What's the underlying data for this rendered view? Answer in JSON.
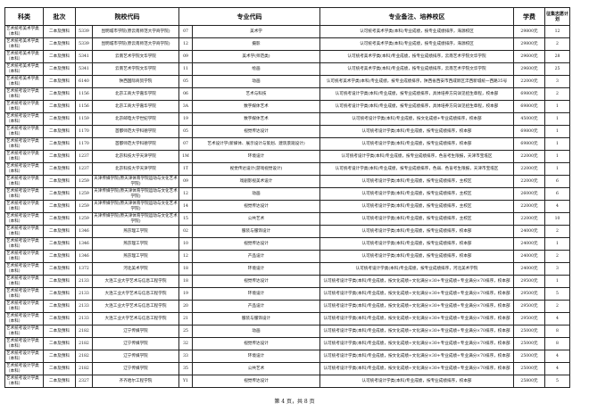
{
  "headers": {
    "category": "科类",
    "batch": "批次",
    "school_code": "院校代码",
    "major_code": "专业代码",
    "notes": "专业备注、培养校区",
    "fee": "学费",
    "plan": "征集志愿计划"
  },
  "rows": [
    [
      "艺术统考美术学类（本科）",
      "二本及预科",
      "5339",
      "昆明城市学院(原云南师范大学商学院)",
      "07",
      "美术学",
      "认可统考美术学类(本科)专业成绩，按专业成绩排序，海源校区",
      "29800元",
      "12"
    ],
    [
      "艺术统考美术学类（本科）",
      "二本及预科",
      "5339",
      "昆明城市学院(原云南师范大学商学院)",
      "12",
      "摄影",
      "认可统考美术学类(本科)专业成绩，按专业成绩排序，海源校区",
      "29800元",
      "2"
    ],
    [
      "艺术统考美术学类（本科）",
      "二本及预科",
      "5341",
      "云南艺术学院文华学院",
      "09",
      "美术学(师范类)",
      "认可统考美术学类(本科)专业成绩，按专业成绩排序，云南艺术学院文华学院",
      "29600元",
      "28"
    ],
    [
      "艺术统考美术学类（本科）",
      "二本及预科",
      "5341",
      "云南艺术学院文华学院",
      "11",
      "绘画",
      "认可统考美术学类(本科)专业成绩，按专业成绩排序，云南艺术学院文华学院",
      "29600元",
      "25"
    ],
    [
      "艺术统考美术学类（本科）",
      "二本及预科",
      "6140",
      "陕西国际商贸学院",
      "05",
      "动画",
      "认可统考美术学类(本科)专业成绩，按专业成绩排序，陕西省西安市西咸新区沣西新城统一西路35号",
      "22000元",
      "3"
    ],
    [
      "艺术统考设计学类（本科）",
      "二本及预科",
      "1156",
      "北京工商大学嘉华学院",
      "06",
      "艺术与科技",
      "认可统考设计学类(本科)专业成绩，按专业成绩排序，具体培养方向详见招生章程，校本部",
      "69800元",
      "2"
    ],
    [
      "艺术统考设计学类（本科）",
      "二本及预科",
      "1156",
      "北京工商大学嘉华学院",
      "3A",
      "数字媒体艺术",
      "认可统考设计学类(本科)专业成绩，按专业成绩排序，具体培养方向详见招生章程，校本部",
      "69800元",
      "1"
    ],
    [
      "艺术统考设计学类（本科）",
      "二本及预科",
      "1159",
      "北京邮电大学世纪学院",
      "19",
      "数字媒体艺术",
      "认可统考设计学类(本科)专业成绩，按文化成绩+专业成绩排序，校本部",
      "45000元",
      "1"
    ],
    [
      "艺术统考设计学类（本科）",
      "二本及预科",
      "1170",
      "首都师范大学科德学院",
      "05",
      "视觉传达设计",
      "认可统考设计学类(本科)专业成绩，按专业成绩排序，校本部",
      "69800元",
      "1"
    ],
    [
      "艺术统考设计学类（本科）",
      "二本及预科",
      "1170",
      "首都师范大学科德学院",
      "07",
      "艺术设计学(新媒体、展示设计与策划、建筑景观设计)",
      "认可统考设计学类(本科)专业成绩，按专业成绩排序，校本部",
      "69800元",
      "1"
    ],
    [
      "艺术统考设计学类（本科）",
      "二本及预科",
      "1237",
      "北京科技大学天津学院",
      "1M",
      "环境设计",
      "认可统考设计学类(本科)专业成绩，按专业成绩排序，色盲考生限报，天津市宝坻区",
      "22000元",
      "1"
    ],
    [
      "艺术统考设计学类（本科）",
      "二本及预科",
      "1237",
      "北京科技大学天津学院",
      "1T",
      "视觉传达设计(游戏视觉设计)",
      "认可统考设计学类(本科)专业成绩，按专业成绩排序，色弱、色盲考生限报，天津市宝坻区",
      "22000元",
      "1"
    ],
    [
      "艺术统考设计学类（本科）",
      "二本及预科",
      "1259",
      "天津传媒学院(原天津体育学院运动与文化艺术学院)",
      "09",
      "戏剧影视美术设计",
      "认可统考设计学类(本科)专业成绩，按专业成绩排序，主校区",
      "22000元",
      "6"
    ],
    [
      "艺术统考设计学类（本科）",
      "二本及预科",
      "1259",
      "天津传媒学院(原天津体育学院运动与文化艺术学院)",
      "12",
      "动画",
      "认可统考设计学类(本科)专业成绩，按专业成绩排序，主校区",
      "26000元",
      "6"
    ],
    [
      "艺术统考设计学类（本科）",
      "二本及预科",
      "1259",
      "天津传媒学院(原天津体育学院运动与文化艺术学院)",
      "14",
      "视觉传达设计",
      "认可统考设计学类(本科)专业成绩，按专业成绩排序，主校区",
      "22000元",
      "4"
    ],
    [
      "艺术统考设计学类（本科）",
      "二本及预科",
      "1259",
      "天津传媒学院(原天津体育学院运动与文化艺术学院)",
      "15",
      "公共艺术",
      "认可统考设计学类(本科)专业成绩，按专业成绩排序，主校区",
      "22000元",
      "10"
    ],
    [
      "艺术统考设计学类（本科）",
      "二本及预科",
      "1346",
      "燕京理工学院",
      "02",
      "服装与服饰设计",
      "认可统考设计学类(本科)专业成绩，按专业成绩排序，校本部",
      "24000元",
      "2"
    ],
    [
      "艺术统考设计学类（本科）",
      "二本及预科",
      "1346",
      "燕京理工学院",
      "10",
      "视觉传达设计",
      "认可统考设计学类(本科)专业成绩，按专业成绩排序，校本部",
      "24000元",
      "1"
    ],
    [
      "艺术统考设计学类（本科）",
      "二本及预科",
      "1346",
      "燕京理工学院",
      "12",
      "产品设计",
      "认可统考设计学类(本科)专业成绩，按专业成绩排序，校本部",
      "24000元",
      "2"
    ],
    [
      "艺术统考设计学类（本科）",
      "二本及预科",
      "1372",
      "河北美术学院",
      "18",
      "环境设计",
      "认可统考设计学类(本科)专业成绩，按专业成绩排序，河北美术学院",
      "24000元",
      "3"
    ],
    [
      "艺术统考设计学类（本科）",
      "二本及预科",
      "2133",
      "大连工业大学艺术与信息工程学院",
      "18",
      "视觉传达设计",
      "认可统考设计学类(本科)专业成绩，按文化成绩÷文化满分×30+专业成绩÷专业满分×70排序，校本部",
      "29500元",
      "1"
    ],
    [
      "艺术统考设计学类（本科）",
      "二本及预科",
      "2133",
      "大连工业大学艺术与信息工程学院",
      "19",
      "环境设计",
      "认可统考设计学类(本科)专业成绩，按文化成绩÷文化满分×30+专业成绩÷专业满分×70排序，校本部",
      "29500元",
      "5"
    ],
    [
      "艺术统考设计学类（本科）",
      "二本及预科",
      "2133",
      "大连工业大学艺术与信息工程学院",
      "20",
      "产品设计",
      "认可统考设计学类(本科)专业成绩，按文化成绩÷文化满分×30+专业成绩÷专业满分×70排序，校本部",
      "29500元",
      "2"
    ],
    [
      "艺术统考设计学类（本科）",
      "二本及预科",
      "2133",
      "大连工业大学艺术与信息工程学院",
      "21",
      "服装与服饰设计",
      "认可统考设计学类(本科)专业成绩，按文化成绩÷文化满分×30+专业成绩÷专业满分×70排序，校本部",
      "29500元",
      "4"
    ],
    [
      "艺术统考设计学类（本科）",
      "二本及预科",
      "2182",
      "辽宁传媒学院",
      "25",
      "动画",
      "认可统考设计学类(本科)专业成绩，按文化成绩÷文化满分×30+专业成绩÷专业满分×70排序，校本部",
      "25000元",
      "8"
    ],
    [
      "艺术统考设计学类（本科）",
      "二本及预科",
      "2182",
      "辽宁传媒学院",
      "32",
      "视觉传达设计",
      "认可统考设计学类(本科)专业成绩，按文化成绩÷文化满分×30+专业成绩÷专业满分×70排序，校本部",
      "25000元",
      "8"
    ],
    [
      "艺术统考设计学类（本科）",
      "二本及预科",
      "2182",
      "辽宁传媒学院",
      "33",
      "环境设计",
      "认可统考设计学类(本科)专业成绩，按文化成绩÷文化满分×30+专业成绩÷专业满分×70排序，校本部",
      "25000元",
      "4"
    ],
    [
      "艺术统考设计学类（本科）",
      "二本及预科",
      "2182",
      "辽宁传媒学院",
      "35",
      "公共艺术",
      "认可统考设计学类(本科)专业成绩，按文化成绩÷文化满分×30+专业成绩÷专业满分×70排序，校本部",
      "25000元",
      "4"
    ],
    [
      "艺术统考设计学类（本科）",
      "二本及预科",
      "2327",
      "齐齐哈尔工程学院",
      "Y1",
      "视觉传达设计",
      "认可统考设计学类(本科)专业成绩，按专业成绩排序，校本部",
      "25800元",
      "5"
    ]
  ],
  "footer": "第 4 页，共 8 页"
}
